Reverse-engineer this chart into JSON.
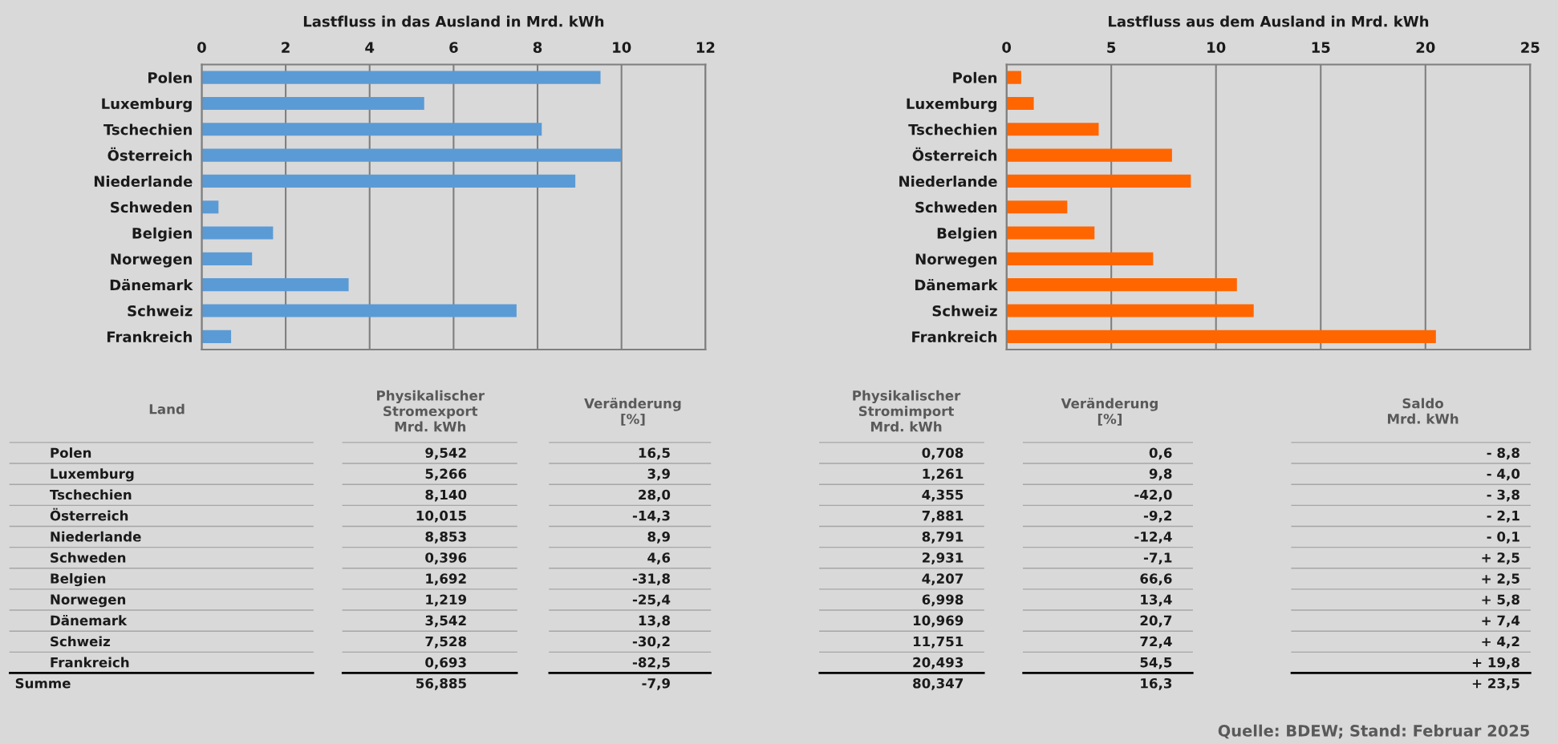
{
  "chart_data": [
    {
      "type": "bar",
      "orientation": "horizontal",
      "title": "Lastfluss in das Ausland in Mrd. kWh",
      "categories": [
        "Polen",
        "Luxemburg",
        "Tschechien",
        "Österreich",
        "Niederlande",
        "Schweden",
        "Belgien",
        "Norwegen",
        "Dänemark",
        "Schweiz",
        "Frankreich"
      ],
      "series": [
        {
          "color": "#5b9bd5",
          "values": [
            9.5,
            5.3,
            8.1,
            10.0,
            8.9,
            0.4,
            1.7,
            1.2,
            3.5,
            7.5,
            0.7
          ]
        }
      ],
      "xlim": [
        0,
        12
      ],
      "xticks": [
        0,
        2,
        4,
        6,
        8,
        10,
        12
      ],
      "grid": "x"
    },
    {
      "type": "bar",
      "orientation": "horizontal",
      "title": "Lastfluss aus dem Ausland in Mrd. kWh",
      "categories": [
        "Polen",
        "Luxemburg",
        "Tschechien",
        "Österreich",
        "Niederlande",
        "Schweden",
        "Belgien",
        "Norwegen",
        "Dänemark",
        "Schweiz",
        "Frankreich"
      ],
      "series": [
        {
          "color": "#ff6600",
          "values": [
            0.7,
            1.3,
            4.4,
            7.9,
            8.8,
            2.9,
            4.2,
            7.0,
            11.0,
            11.8,
            20.5
          ]
        }
      ],
      "xlim": [
        0,
        25
      ],
      "xticks": [
        0,
        5,
        10,
        15,
        20,
        25
      ],
      "grid": "x"
    },
    {
      "type": "other",
      "ylabel": "Land",
      "categories": [
        "Polen",
        "Luxemburg",
        "Tschechien",
        "Österreich",
        "Niederlande",
        "Schweden",
        "Belgien",
        "Norwegen",
        "Dänemark",
        "Schweiz",
        "Frankreich",
        "Summe"
      ],
      "series": [
        {
          "name": "Physikalischer\nStromexport\nMrd. kWh",
          "values": [
            9.542,
            5.266,
            8.14,
            10.015,
            8.853,
            0.396,
            1.692,
            1.219,
            3.542,
            7.528,
            0.693,
            56.885
          ],
          "value_labels": [
            "9,542",
            "5,266",
            "8,140",
            "10,015",
            "8,853",
            "0,396",
            "1,692",
            "1,219",
            "3,542",
            "7,528",
            "0,693",
            "56,885"
          ]
        },
        {
          "name": "Veränderung\n[%]",
          "values": [
            16.5,
            3.9,
            28.0,
            -14.3,
            8.9,
            4.6,
            -31.8,
            -25.4,
            13.8,
            -30.2,
            -82.5,
            -7.9
          ],
          "value_labels": [
            "16,5",
            "3,9",
            "28,0",
            "-14,3",
            "8,9",
            "4,6",
            "-31,8",
            "-25,4",
            "13,8",
            "-30,2",
            "-82,5",
            "-7,9"
          ]
        },
        {
          "name": "Physikalischer\nStromimport\nMrd. kWh",
          "values": [
            0.708,
            1.261,
            4.355,
            7.881,
            8.791,
            2.931,
            4.207,
            6.998,
            10.969,
            11.751,
            20.493,
            80.347
          ],
          "value_labels": [
            "0,708",
            "1,261",
            "4,355",
            "7,881",
            "8,791",
            "2,931",
            "4,207",
            "6,998",
            "10,969",
            "11,751",
            "20,493",
            "80,347"
          ]
        },
        {
          "name": "Veränderung\n[%]",
          "values": [
            0.6,
            9.8,
            -42.0,
            -9.2,
            -12.4,
            -7.1,
            66.6,
            13.4,
            20.7,
            72.4,
            54.5,
            16.3
          ],
          "value_labels": [
            "0,6",
            "9,8",
            "-42,0",
            "-9,2",
            "-12,4",
            "-7,1",
            "66,6",
            "13,4",
            "20,7",
            "72,4",
            "54,5",
            "16,3"
          ]
        },
        {
          "name": "Saldo\nMrd. kWh",
          "values": [
            -8.8,
            -4.0,
            -3.8,
            -2.1,
            -0.1,
            2.5,
            2.5,
            5.8,
            7.4,
            4.2,
            19.8,
            23.5
          ],
          "value_labels": [
            "- 8,8",
            "- 4,0",
            "- 3,8",
            "- 2,1",
            "- 0,1",
            "+ 2,5",
            "+ 2,5",
            "+ 5,8",
            "+ 7,4",
            "+ 4,2",
            "+ 19,8",
            "+ 23,5"
          ]
        }
      ],
      "annotations": [
        "Quelle: BDEW; Stand: Februar 2025"
      ]
    }
  ]
}
